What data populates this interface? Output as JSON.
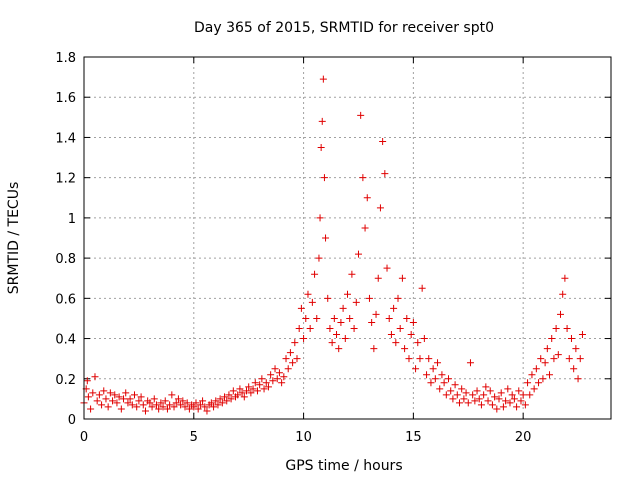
{
  "chart_data": {
    "type": "scatter",
    "title": "Day 365 of 2015, SRMTID for receiver spt0",
    "xlabel": "GPS time / hours",
    "ylabel": "SRMTID / TECUs",
    "xlim": [
      0,
      24
    ],
    "ylim": [
      0,
      1.8
    ],
    "xticks": [
      0,
      5,
      10,
      15,
      20
    ],
    "xtick_labels": [
      "0",
      "5",
      "10",
      "15",
      "20"
    ],
    "yticks": [
      0,
      0.2,
      0.4,
      0.6,
      0.8,
      1.0,
      1.2,
      1.4,
      1.6,
      1.8
    ],
    "ytick_labels": [
      "0",
      "0.2",
      "0.4",
      "0.6",
      "0.8",
      "1",
      "1.2",
      "1.4",
      "1.6",
      "1.8"
    ],
    "grid": true,
    "marker": "+",
    "color": "#e00000",
    "series": [
      {
        "name": "spt0",
        "points": [
          [
            0.0,
            0.08
          ],
          [
            0.1,
            0.15
          ],
          [
            0.15,
            0.19
          ],
          [
            0.2,
            0.11
          ],
          [
            0.3,
            0.05
          ],
          [
            0.4,
            0.13
          ],
          [
            0.5,
            0.21
          ],
          [
            0.6,
            0.09
          ],
          [
            0.7,
            0.12
          ],
          [
            0.8,
            0.07
          ],
          [
            0.9,
            0.14
          ],
          [
            1.0,
            0.1
          ],
          [
            1.1,
            0.06
          ],
          [
            1.2,
            0.13
          ],
          [
            1.3,
            0.09
          ],
          [
            1.4,
            0.12
          ],
          [
            1.5,
            0.08
          ],
          [
            1.6,
            0.11
          ],
          [
            1.7,
            0.05
          ],
          [
            1.8,
            0.1
          ],
          [
            1.9,
            0.13
          ],
          [
            2.0,
            0.08
          ],
          [
            2.1,
            0.1
          ],
          [
            2.2,
            0.07
          ],
          [
            2.3,
            0.12
          ],
          [
            2.4,
            0.06
          ],
          [
            2.5,
            0.09
          ],
          [
            2.6,
            0.11
          ],
          [
            2.7,
            0.07
          ],
          [
            2.8,
            0.04
          ],
          [
            2.9,
            0.09
          ],
          [
            3.0,
            0.08
          ],
          [
            3.1,
            0.06
          ],
          [
            3.2,
            0.1
          ],
          [
            3.3,
            0.07
          ],
          [
            3.4,
            0.05
          ],
          [
            3.5,
            0.08
          ],
          [
            3.6,
            0.06
          ],
          [
            3.7,
            0.09
          ],
          [
            3.8,
            0.05
          ],
          [
            3.9,
            0.07
          ],
          [
            4.0,
            0.12
          ],
          [
            4.1,
            0.06
          ],
          [
            4.2,
            0.08
          ],
          [
            4.3,
            0.1
          ],
          [
            4.4,
            0.07
          ],
          [
            4.5,
            0.09
          ],
          [
            4.6,
            0.06
          ],
          [
            4.7,
            0.08
          ],
          [
            4.8,
            0.05
          ],
          [
            4.9,
            0.07
          ],
          [
            5.0,
            0.06
          ],
          [
            5.1,
            0.08
          ],
          [
            5.2,
            0.05
          ],
          [
            5.3,
            0.07
          ],
          [
            5.4,
            0.09
          ],
          [
            5.5,
            0.06
          ],
          [
            5.6,
            0.04
          ],
          [
            5.7,
            0.07
          ],
          [
            5.8,
            0.08
          ],
          [
            5.9,
            0.06
          ],
          [
            6.0,
            0.09
          ],
          [
            6.1,
            0.07
          ],
          [
            6.2,
            0.1
          ],
          [
            6.3,
            0.08
          ],
          [
            6.4,
            0.11
          ],
          [
            6.5,
            0.09
          ],
          [
            6.6,
            0.12
          ],
          [
            6.7,
            0.1
          ],
          [
            6.8,
            0.14
          ],
          [
            6.9,
            0.11
          ],
          [
            7.0,
            0.12
          ],
          [
            7.1,
            0.15
          ],
          [
            7.2,
            0.13
          ],
          [
            7.3,
            0.11
          ],
          [
            7.4,
            0.14
          ],
          [
            7.5,
            0.16
          ],
          [
            7.6,
            0.13
          ],
          [
            7.7,
            0.15
          ],
          [
            7.8,
            0.18
          ],
          [
            7.9,
            0.14
          ],
          [
            8.0,
            0.17
          ],
          [
            8.1,
            0.2
          ],
          [
            8.2,
            0.15
          ],
          [
            8.3,
            0.18
          ],
          [
            8.4,
            0.16
          ],
          [
            8.5,
            0.22
          ],
          [
            8.6,
            0.19
          ],
          [
            8.7,
            0.25
          ],
          [
            8.8,
            0.2
          ],
          [
            8.9,
            0.23
          ],
          [
            9.0,
            0.18
          ],
          [
            9.1,
            0.21
          ],
          [
            9.2,
            0.3
          ],
          [
            9.3,
            0.25
          ],
          [
            9.4,
            0.33
          ],
          [
            9.5,
            0.28
          ],
          [
            9.6,
            0.38
          ],
          [
            9.7,
            0.3
          ],
          [
            9.8,
            0.45
          ],
          [
            9.9,
            0.55
          ],
          [
            10.0,
            0.4
          ],
          [
            10.1,
            0.5
          ],
          [
            10.2,
            0.62
          ],
          [
            10.3,
            0.45
          ],
          [
            10.4,
            0.58
          ],
          [
            10.5,
            0.72
          ],
          [
            10.6,
            0.5
          ],
          [
            10.7,
            0.8
          ],
          [
            10.75,
            1.0
          ],
          [
            10.8,
            1.35
          ],
          [
            10.85,
            1.48
          ],
          [
            10.9,
            1.69
          ],
          [
            10.95,
            1.2
          ],
          [
            11.0,
            0.9
          ],
          [
            11.1,
            0.6
          ],
          [
            11.2,
            0.45
          ],
          [
            11.3,
            0.38
          ],
          [
            11.4,
            0.5
          ],
          [
            11.5,
            0.42
          ],
          [
            11.6,
            0.35
          ],
          [
            11.7,
            0.48
          ],
          [
            11.8,
            0.55
          ],
          [
            11.9,
            0.4
          ],
          [
            12.0,
            0.62
          ],
          [
            12.1,
            0.5
          ],
          [
            12.2,
            0.72
          ],
          [
            12.3,
            0.45
          ],
          [
            12.4,
            0.58
          ],
          [
            12.5,
            0.82
          ],
          [
            12.6,
            1.51
          ],
          [
            12.7,
            1.2
          ],
          [
            12.8,
            0.95
          ],
          [
            12.9,
            1.1
          ],
          [
            13.0,
            0.6
          ],
          [
            13.1,
            0.48
          ],
          [
            13.2,
            0.35
          ],
          [
            13.3,
            0.52
          ],
          [
            13.4,
            0.7
          ],
          [
            13.5,
            1.05
          ],
          [
            13.6,
            1.38
          ],
          [
            13.7,
            1.22
          ],
          [
            13.8,
            0.75
          ],
          [
            13.9,
            0.5
          ],
          [
            14.0,
            0.42
          ],
          [
            14.1,
            0.55
          ],
          [
            14.2,
            0.38
          ],
          [
            14.3,
            0.6
          ],
          [
            14.4,
            0.45
          ],
          [
            14.5,
            0.7
          ],
          [
            14.6,
            0.35
          ],
          [
            14.7,
            0.5
          ],
          [
            14.8,
            0.3
          ],
          [
            14.9,
            0.42
          ],
          [
            15.0,
            0.48
          ],
          [
            15.1,
            0.25
          ],
          [
            15.2,
            0.38
          ],
          [
            15.3,
            0.3
          ],
          [
            15.4,
            0.65
          ],
          [
            15.5,
            0.4
          ],
          [
            15.6,
            0.22
          ],
          [
            15.7,
            0.3
          ],
          [
            15.8,
            0.18
          ],
          [
            15.9,
            0.25
          ],
          [
            16.0,
            0.2
          ],
          [
            16.1,
            0.28
          ],
          [
            16.2,
            0.15
          ],
          [
            16.3,
            0.22
          ],
          [
            16.4,
            0.18
          ],
          [
            16.5,
            0.12
          ],
          [
            16.6,
            0.2
          ],
          [
            16.7,
            0.14
          ],
          [
            16.8,
            0.1
          ],
          [
            16.9,
            0.17
          ],
          [
            17.0,
            0.12
          ],
          [
            17.1,
            0.08
          ],
          [
            17.2,
            0.15
          ],
          [
            17.3,
            0.1
          ],
          [
            17.4,
            0.13
          ],
          [
            17.5,
            0.08
          ],
          [
            17.6,
            0.28
          ],
          [
            17.7,
            0.12
          ],
          [
            17.8,
            0.09
          ],
          [
            17.9,
            0.14
          ],
          [
            18.0,
            0.1
          ],
          [
            18.1,
            0.07
          ],
          [
            18.2,
            0.12
          ],
          [
            18.3,
            0.16
          ],
          [
            18.4,
            0.09
          ],
          [
            18.5,
            0.14
          ],
          [
            18.6,
            0.07
          ],
          [
            18.7,
            0.11
          ],
          [
            18.8,
            0.05
          ],
          [
            18.9,
            0.1
          ],
          [
            19.0,
            0.13
          ],
          [
            19.1,
            0.06
          ],
          [
            19.2,
            0.09
          ],
          [
            19.3,
            0.15
          ],
          [
            19.4,
            0.08
          ],
          [
            19.5,
            0.12
          ],
          [
            19.6,
            0.1
          ],
          [
            19.7,
            0.06
          ],
          [
            19.8,
            0.14
          ],
          [
            19.9,
            0.09
          ],
          [
            20.0,
            0.12
          ],
          [
            20.1,
            0.07
          ],
          [
            20.2,
            0.18
          ],
          [
            20.3,
            0.12
          ],
          [
            20.4,
            0.22
          ],
          [
            20.5,
            0.15
          ],
          [
            20.6,
            0.25
          ],
          [
            20.7,
            0.18
          ],
          [
            20.8,
            0.3
          ],
          [
            20.9,
            0.2
          ],
          [
            21.0,
            0.28
          ],
          [
            21.1,
            0.35
          ],
          [
            21.2,
            0.22
          ],
          [
            21.3,
            0.4
          ],
          [
            21.4,
            0.3
          ],
          [
            21.5,
            0.45
          ],
          [
            21.6,
            0.32
          ],
          [
            21.7,
            0.52
          ],
          [
            21.8,
            0.62
          ],
          [
            21.9,
            0.7
          ],
          [
            22.0,
            0.45
          ],
          [
            22.1,
            0.3
          ],
          [
            22.2,
            0.4
          ],
          [
            22.3,
            0.25
          ],
          [
            22.4,
            0.35
          ],
          [
            22.5,
            0.2
          ],
          [
            22.6,
            0.3
          ],
          [
            22.7,
            0.42
          ]
        ]
      }
    ]
  }
}
